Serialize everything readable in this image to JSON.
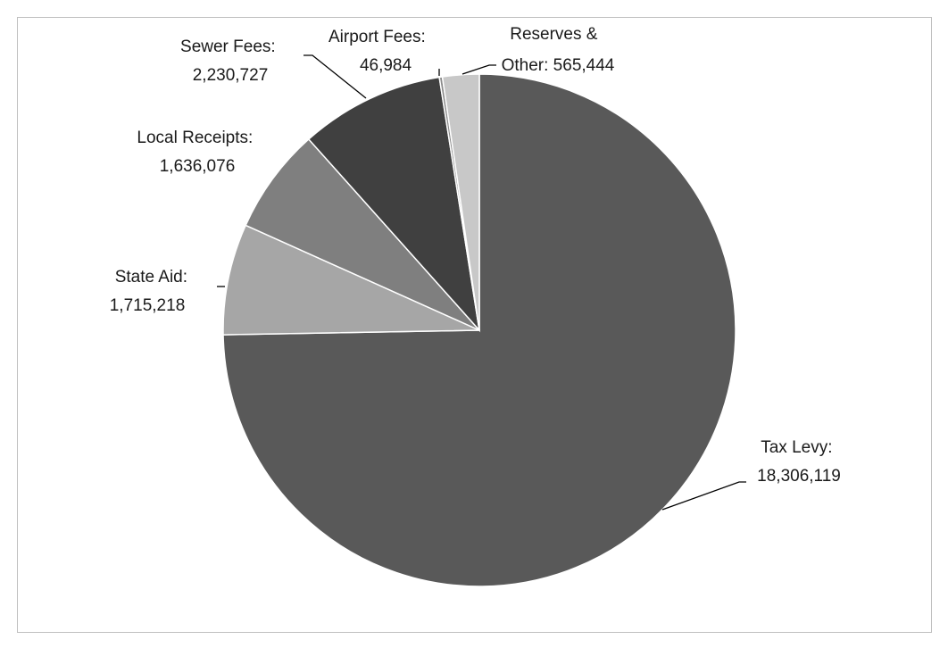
{
  "chart_data": {
    "type": "pie",
    "title": "",
    "slices": [
      {
        "name": "Tax Levy",
        "value": 18306119,
        "value_label": "18,306,119",
        "color": "#595959"
      },
      {
        "name": "State Aid",
        "value": 1715218,
        "value_label": "1,715,218",
        "color": "#a6a6a6"
      },
      {
        "name": "Local Receipts",
        "value": 1636076,
        "value_label": "1,636,076",
        "color": "#7f7f7f"
      },
      {
        "name": "Sewer Fees",
        "value": 2230727,
        "value_label": "2,230,727",
        "color": "#404040"
      },
      {
        "name": "Airport Fees",
        "value": 46984,
        "value_label": "46,984",
        "color": "#8c8c8c"
      },
      {
        "name": "Reserves & Other",
        "value": 565444,
        "value_label": "565,444",
        "color": "#c8c8c8"
      }
    ],
    "labels": {
      "tax_levy": [
        "Tax Levy:",
        "18,306,119"
      ],
      "state_aid": [
        "State Aid:",
        "1,715,218"
      ],
      "local_receipts": [
        "Local Receipts:",
        "1,636,076"
      ],
      "sewer_fees": [
        "Sewer Fees:",
        "2,230,727"
      ],
      "airport_fees": [
        "Airport Fees:",
        "46,984"
      ],
      "reserves_other": [
        "Reserves &",
        "Other: 565,444"
      ]
    },
    "start_angle_deg": 0,
    "direction": "clockwise",
    "legend": "none",
    "colors": {
      "slice_border": "#ffffff",
      "frame": "#bfbfbf",
      "leader": "#000000"
    }
  }
}
